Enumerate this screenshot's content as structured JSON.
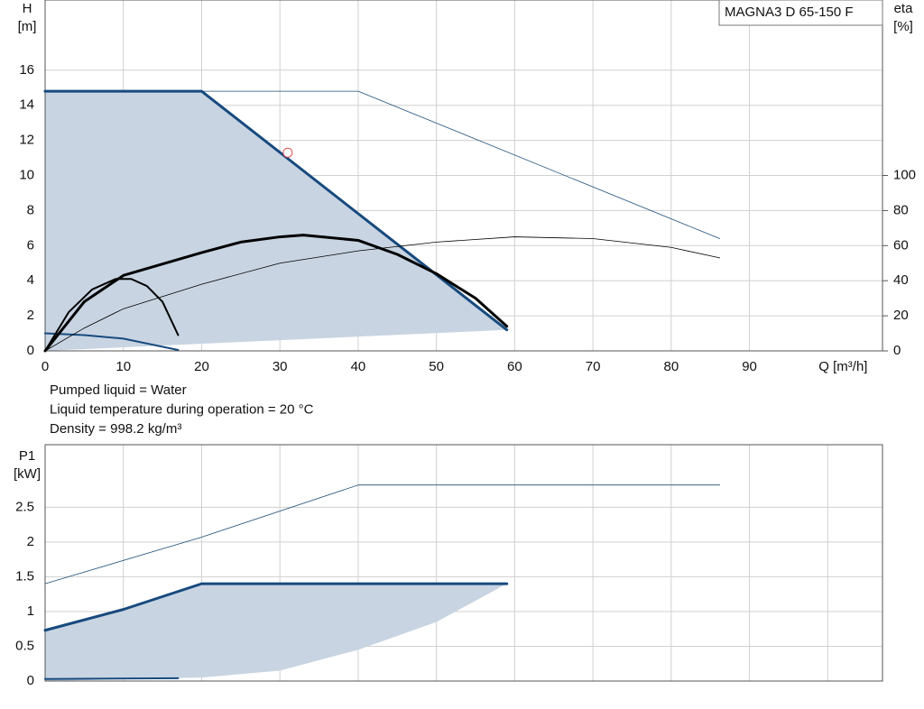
{
  "chart_data": [
    {
      "type": "line",
      "product": "MAGNA3 D 65-150 F",
      "y_label": [
        "H",
        "[m]"
      ],
      "y2_label": [
        "eta",
        "[%]"
      ],
      "x_label": "Q [m³/h]",
      "xlim": [
        0,
        107
      ],
      "xticks": [
        0,
        10,
        20,
        30,
        40,
        50,
        60,
        70,
        80,
        90
      ],
      "show_xtick_labels": true,
      "ylim": [
        0,
        20
      ],
      "yticks": [
        0,
        2,
        4,
        6,
        8,
        10,
        12,
        14,
        16
      ],
      "y2lim": [
        0,
        200
      ],
      "y2ticks": [
        0,
        20,
        40,
        60,
        80,
        100
      ],
      "grid": true,
      "region": {
        "color": "#c8d4e2",
        "x": [
          59,
          0
        ],
        "lower": [
          1.2,
          0
        ]
      },
      "series": [
        {
          "color": "#1f4e7a",
          "width": 0.8,
          "x": [
            0,
            40,
            86.2
          ],
          "values": [
            14.8,
            14.8,
            6.4
          ]
        },
        {
          "color": "#174a7e",
          "width": 3,
          "x": [
            0,
            20,
            59
          ],
          "values": [
            14.8,
            14.8,
            1.2
          ]
        },
        {
          "color": "#174a7e",
          "width": 2,
          "x": [
            0,
            5,
            10,
            17
          ],
          "values": [
            1.0,
            0.9,
            0.7,
            0.05
          ]
        },
        {
          "color": "#000000",
          "width": 0.8,
          "axis": "y2",
          "x": [
            0,
            5,
            10,
            20,
            30,
            40,
            50,
            60,
            70,
            80,
            86.2
          ],
          "values": [
            0,
            13,
            24,
            38,
            50,
            57,
            62,
            65,
            64,
            59,
            53
          ]
        },
        {
          "color": "#000000",
          "width": 3,
          "axis": "y2",
          "x": [
            0,
            5,
            10,
            20,
            25,
            30,
            33,
            40,
            45,
            50,
            55,
            59
          ],
          "values": [
            0,
            28,
            43,
            56,
            62,
            65,
            66,
            63,
            55,
            44,
            30,
            14
          ]
        },
        {
          "color": "#000000",
          "width": 2,
          "axis": "y2",
          "x": [
            0,
            3,
            6,
            9,
            11,
            13,
            15,
            17
          ],
          "values": [
            0,
            22,
            35,
            41,
            41,
            37,
            28,
            9
          ]
        }
      ],
      "duty_point": {
        "x": 31,
        "y": 11.3,
        "color": "#e05050"
      },
      "annotations": [
        "Pumped liquid = Water",
        "Liquid temperature during operation = 20 °C",
        "Density = 998.2 kg/m³"
      ]
    },
    {
      "type": "line",
      "y_label": [
        "P1",
        "[kW]"
      ],
      "xlim": [
        0,
        107
      ],
      "xticks": [
        0,
        10,
        20,
        30,
        40,
        50,
        60,
        70,
        80,
        90,
        100
      ],
      "show_xtick_labels": false,
      "ylim": [
        0,
        3.4
      ],
      "yticks": [
        0,
        0.5,
        1.0,
        1.5,
        2.0,
        2.5
      ],
      "grid": true,
      "region": {
        "color": "#c8d4e2",
        "x": [
          59,
          50,
          40,
          30,
          20,
          0
        ],
        "lower": [
          1.4,
          0.85,
          0.45,
          0.15,
          0.05,
          0
        ]
      },
      "series": [
        {
          "color": "#1f4e7a",
          "width": 0.8,
          "x": [
            0,
            20,
            40,
            86.2
          ],
          "values": [
            1.4,
            2.07,
            2.82,
            2.82
          ]
        },
        {
          "color": "#174a7e",
          "width": 3,
          "x": [
            0,
            10,
            20,
            59
          ],
          "values": [
            0.73,
            1.03,
            1.4,
            1.4
          ]
        },
        {
          "color": "#174a7e",
          "width": 2,
          "x": [
            0,
            17
          ],
          "values": [
            0.03,
            0.04
          ]
        }
      ]
    }
  ]
}
